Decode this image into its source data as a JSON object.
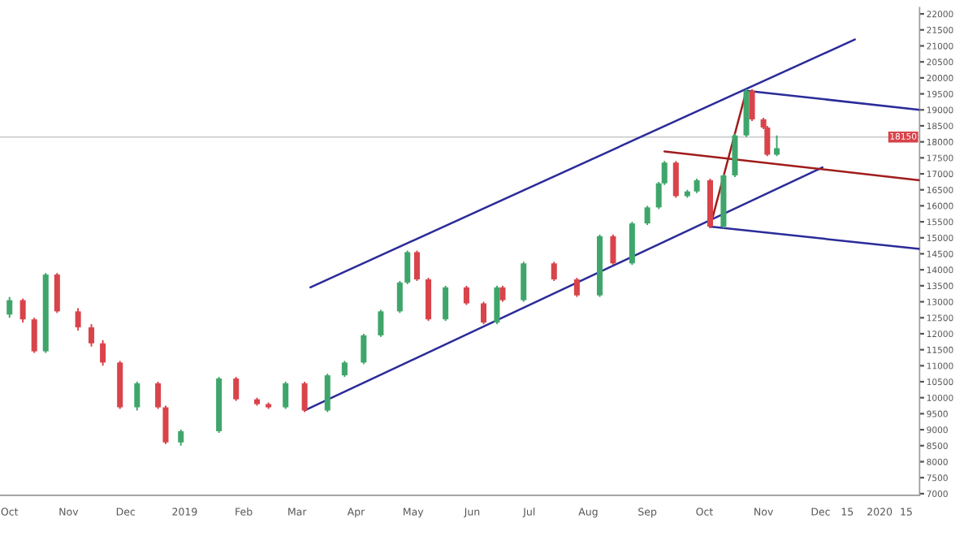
{
  "chart_data": {
    "type": "candlestick",
    "x": [
      "2018-10-01",
      "2018-10-08",
      "2018-10-14",
      "2018-10-20",
      "2018-10-26",
      "2018-11-06",
      "2018-11-13",
      "2018-11-19",
      "2018-11-28",
      "2018-12-07",
      "2018-12-18",
      "2018-12-22",
      "2018-12-30",
      "2019-01-19",
      "2019-01-28",
      "2019-02-08",
      "2019-02-14",
      "2019-02-23",
      "2019-03-05",
      "2019-03-17",
      "2019-03-26",
      "2019-04-05",
      "2019-04-14",
      "2019-04-24",
      "2019-04-28",
      "2019-05-03",
      "2019-05-09",
      "2019-05-18",
      "2019-05-29",
      "2019-06-07",
      "2019-06-14",
      "2019-06-17",
      "2019-06-28",
      "2019-07-14",
      "2019-07-26",
      "2019-08-07",
      "2019-08-14",
      "2019-08-24",
      "2019-09-01",
      "2019-09-07",
      "2019-09-10",
      "2019-09-16",
      "2019-09-22",
      "2019-09-27",
      "2019-10-04",
      "2019-10-11",
      "2019-10-17",
      "2019-10-23",
      "2019-10-26",
      "2019-11-01",
      "2019-11-03",
      "2019-11-08"
    ],
    "ohlc": [
      [
        12600,
        13150,
        12500,
        13050
      ],
      [
        13050,
        13100,
        12350,
        12450
      ],
      [
        12450,
        12500,
        11400,
        11450
      ],
      [
        11450,
        13900,
        11400,
        13850
      ],
      [
        13850,
        13900,
        12650,
        12700
      ],
      [
        12700,
        12800,
        12100,
        12200
      ],
      [
        12200,
        12300,
        11600,
        11700
      ],
      [
        11700,
        11800,
        11000,
        11100
      ],
      [
        11100,
        11150,
        9650,
        9700
      ],
      [
        9700,
        10500,
        9600,
        10450
      ],
      [
        10450,
        10500,
        9650,
        9700
      ],
      [
        9700,
        9750,
        8550,
        8600
      ],
      [
        8600,
        9000,
        8500,
        8950
      ],
      [
        8950,
        10650,
        8900,
        10600
      ],
      [
        10600,
        10650,
        9900,
        9950
      ],
      [
        9950,
        10000,
        9750,
        9800
      ],
      [
        9800,
        9850,
        9650,
        9700
      ],
      [
        9700,
        10500,
        9650,
        10450
      ],
      [
        10450,
        10500,
        9550,
        9600
      ],
      [
        9600,
        10750,
        9550,
        10700
      ],
      [
        10700,
        11150,
        10650,
        11100
      ],
      [
        11100,
        12000,
        11050,
        11950
      ],
      [
        11950,
        12750,
        11900,
        12700
      ],
      [
        12700,
        13650,
        12650,
        13600
      ],
      [
        13600,
        14600,
        13550,
        14550
      ],
      [
        14550,
        14600,
        13650,
        13700
      ],
      [
        13700,
        13750,
        12400,
        12450
      ],
      [
        12450,
        13500,
        12400,
        13450
      ],
      [
        13450,
        13500,
        12900,
        12950
      ],
      [
        12950,
        13000,
        12300,
        12350
      ],
      [
        12350,
        13500,
        12300,
        13450
      ],
      [
        13450,
        13500,
        13000,
        13050
      ],
      [
        13050,
        14250,
        13000,
        14200
      ],
      [
        14200,
        14250,
        13650,
        13700
      ],
      [
        13700,
        13750,
        13150,
        13200
      ],
      [
        13200,
        15100,
        13150,
        15050
      ],
      [
        15050,
        15100,
        14150,
        14200
      ],
      [
        14200,
        15500,
        14150,
        15450
      ],
      [
        15450,
        16000,
        15400,
        15950
      ],
      [
        15950,
        16750,
        15900,
        16700
      ],
      [
        16700,
        17400,
        16650,
        17350
      ],
      [
        17350,
        17400,
        16250,
        16300
      ],
      [
        16300,
        16500,
        16250,
        16450
      ],
      [
        16450,
        16850,
        16400,
        16800
      ],
      [
        16800,
        16850,
        15300,
        15350
      ],
      [
        15350,
        17000,
        15300,
        16950
      ],
      [
        16950,
        18250,
        16900,
        18200
      ],
      [
        18200,
        19650,
        18150,
        19600
      ],
      [
        19600,
        19650,
        18650,
        18700
      ],
      [
        18700,
        18750,
        18400,
        18450
      ],
      [
        18450,
        18500,
        17550,
        17600
      ],
      [
        17600,
        18200,
        17550,
        17800
      ]
    ],
    "series": [
      {
        "type": "line",
        "color": "#2b2b9a",
        "x": [
          "2019-03-08",
          "2019-12-19"
        ],
        "values": [
          13450,
          21200
        ]
      },
      {
        "type": "line",
        "color": "#2b2b9a",
        "x": [
          "2019-03-05",
          "2019-12-02"
        ],
        "values": [
          9600,
          17200
        ]
      },
      {
        "type": "line",
        "color": "#a01c1c",
        "x": [
          "2019-10-04",
          "2019-10-23"
        ],
        "values": [
          15350,
          19600
        ]
      },
      {
        "type": "line",
        "color": "#a01c1c",
        "x": [
          "2019-09-10",
          "2020-01-22"
        ],
        "values": [
          17700,
          16800
        ]
      },
      {
        "type": "line",
        "color": "#2b2b9a",
        "x": [
          "2019-10-23",
          "2020-01-22"
        ],
        "values": [
          19600,
          19000
        ]
      },
      {
        "type": "line",
        "color": "#2b2b9a",
        "x": [
          "2019-10-04",
          "2020-01-22"
        ],
        "values": [
          15350,
          14650
        ]
      }
    ],
    "ref_lines": [
      {
        "axis": "y",
        "value": 18150,
        "label": "18150",
        "color": "#c8c8c8"
      }
    ],
    "xlim": [
      "2018-09-26",
      "2020-01-22"
    ],
    "xticks": [
      {
        "value": "2018-10-01",
        "label": "Oct"
      },
      {
        "value": "2018-11-01",
        "label": "Nov"
      },
      {
        "value": "2018-12-01",
        "label": "Dec"
      },
      {
        "value": "2019-01-01",
        "label": "2019"
      },
      {
        "value": "2019-02-01",
        "label": "Feb"
      },
      {
        "value": "2019-03-01",
        "label": "Mar"
      },
      {
        "value": "2019-04-01",
        "label": "Apr"
      },
      {
        "value": "2019-05-01",
        "label": "May"
      },
      {
        "value": "2019-06-01",
        "label": "Jun"
      },
      {
        "value": "2019-07-01",
        "label": "Jul"
      },
      {
        "value": "2019-08-01",
        "label": "Aug"
      },
      {
        "value": "2019-09-01",
        "label": "Sep"
      },
      {
        "value": "2019-10-01",
        "label": "Oct"
      },
      {
        "value": "2019-11-01",
        "label": "Nov"
      },
      {
        "value": "2019-12-01",
        "label": "Dec"
      },
      {
        "value": "2019-12-15",
        "label": "15"
      },
      {
        "value": "2020-01-01",
        "label": "2020"
      },
      {
        "value": "2020-01-15",
        "label": "15"
      }
    ],
    "ylim": [
      6950,
      22200
    ],
    "yticks": [
      7000,
      7500,
      8000,
      8500,
      9000,
      9500,
      10000,
      10500,
      11000,
      11500,
      12000,
      12500,
      13000,
      13500,
      14000,
      14500,
      15000,
      15500,
      16000,
      16500,
      17000,
      17500,
      18000,
      18500,
      19000,
      19500,
      20000,
      20500,
      21000,
      21500,
      22000
    ],
    "grid": false
  }
}
